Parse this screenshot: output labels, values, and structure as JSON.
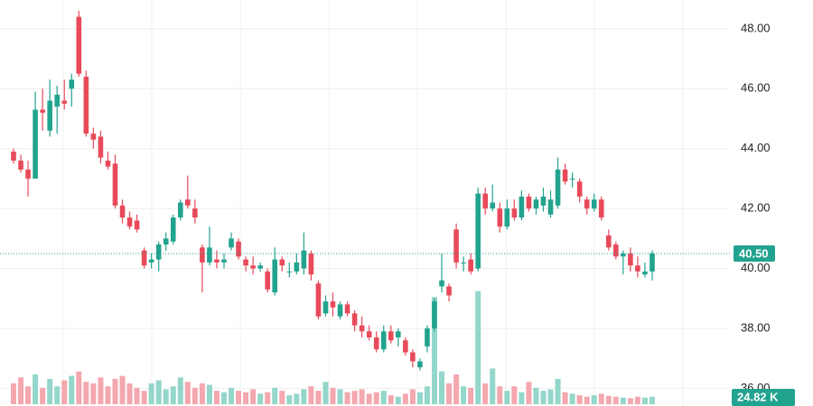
{
  "chart_data": {
    "type": "candlestick",
    "open": [
      43.9,
      43.6,
      43.3,
      43.0,
      45.3,
      44.6,
      45.4,
      45.6,
      46.0,
      48.4,
      46.4,
      44.5,
      44.4,
      43.6,
      43.5,
      42.1,
      41.7,
      41.6,
      40.6,
      40.2,
      40.3,
      40.8,
      40.9,
      41.7,
      42.3,
      42.0,
      40.7,
      40.2,
      40.3,
      40.2,
      40.7,
      40.9,
      40.3,
      40.1,
      40.0,
      39.9,
      39.2,
      40.3,
      39.9,
      39.9,
      40.0,
      40.5,
      39.5,
      38.5,
      38.9,
      38.4,
      38.8,
      38.5,
      38.1,
      37.9,
      37.7,
      37.3,
      37.9,
      37.7,
      37.6,
      37.2,
      36.7,
      37.4,
      38.0,
      39.4,
      39.4,
      41.3,
      40.2,
      40.3,
      40.0,
      42.5,
      42.0,
      42.0,
      41.4,
      42.0,
      41.7,
      42.4,
      42.0,
      42.1,
      41.8,
      42.1,
      43.3,
      43.0,
      42.9,
      42.3,
      42.0,
      42.3,
      41.1,
      40.8,
      40.4,
      40.5,
      40.1,
      39.8,
      39.9
    ],
    "high": [
      44.0,
      43.8,
      43.6,
      45.9,
      46.0,
      46.3,
      46.1,
      46.3,
      46.5,
      48.6,
      46.6,
      44.7,
      44.6,
      43.9,
      43.8,
      42.3,
      41.9,
      41.8,
      40.7,
      40.5,
      40.9,
      41.2,
      41.8,
      42.3,
      43.1,
      42.3,
      40.8,
      41.4,
      40.6,
      40.5,
      41.2,
      41.0,
      40.4,
      40.4,
      40.2,
      40.0,
      40.7,
      40.4,
      40.2,
      40.5,
      41.2,
      40.6,
      39.6,
      39.1,
      39.2,
      38.9,
      38.9,
      38.6,
      38.4,
      38.1,
      37.9,
      38.1,
      38.1,
      38.0,
      37.7,
      37.3,
      37.0,
      38.1,
      39.0,
      40.5,
      39.5,
      41.5,
      40.4,
      40.5,
      42.7,
      42.7,
      42.8,
      42.2,
      42.3,
      42.3,
      42.6,
      42.5,
      42.4,
      42.7,
      42.6,
      43.7,
      43.5,
      43.2,
      43.0,
      42.4,
      42.5,
      42.4,
      41.3,
      40.9,
      40.6,
      40.7,
      40.4,
      40.2,
      40.6
    ],
    "low": [
      43.5,
      43.2,
      42.4,
      43.0,
      44.6,
      44.4,
      44.5,
      45.3,
      45.4,
      46.4,
      44.4,
      44.0,
      43.5,
      43.3,
      42.0,
      41.5,
      41.3,
      41.2,
      40.0,
      40.0,
      39.9,
      40.6,
      40.8,
      41.6,
      42.0,
      41.5,
      39.2,
      40.1,
      40.0,
      40.0,
      40.6,
      40.3,
      39.9,
      39.8,
      39.9,
      39.2,
      39.1,
      39.9,
      39.7,
      39.8,
      39.8,
      39.6,
      38.3,
      38.4,
      38.4,
      38.3,
      38.4,
      37.9,
      37.7,
      37.6,
      37.2,
      37.2,
      37.5,
      37.4,
      37.1,
      36.7,
      36.6,
      37.2,
      37.9,
      39.2,
      38.9,
      40.0,
      39.9,
      39.8,
      39.9,
      41.8,
      41.9,
      41.2,
      41.3,
      41.6,
      41.6,
      41.9,
      41.8,
      41.9,
      41.7,
      42.0,
      42.8,
      42.7,
      42.2,
      41.8,
      41.9,
      41.6,
      40.6,
      40.3,
      39.8,
      39.9,
      39.7,
      39.7,
      39.6
    ],
    "close": [
      43.6,
      43.3,
      43.0,
      45.3,
      45.2,
      45.6,
      45.8,
      45.5,
      46.3,
      46.5,
      44.5,
      44.3,
      43.7,
      43.4,
      42.1,
      41.7,
      41.4,
      41.3,
      40.1,
      40.3,
      40.8,
      41.0,
      41.7,
      42.2,
      42.1,
      41.7,
      40.2,
      40.7,
      40.2,
      40.3,
      41.0,
      40.4,
      40.1,
      40.0,
      40.1,
      39.3,
      40.3,
      40.1,
      39.9,
      40.2,
      40.6,
      39.8,
      38.4,
      38.9,
      38.7,
      38.8,
      38.5,
      38.1,
      37.9,
      37.7,
      37.3,
      37.9,
      37.6,
      37.9,
      37.2,
      36.9,
      36.9,
      38.0,
      38.9,
      39.6,
      39.1,
      40.2,
      40.2,
      39.9,
      42.5,
      42.0,
      42.2,
      41.4,
      42.0,
      41.7,
      42.4,
      42.0,
      42.3,
      42.4,
      42.3,
      43.3,
      42.9,
      43.0,
      42.4,
      42.0,
      42.3,
      41.7,
      40.7,
      40.4,
      40.5,
      40.1,
      39.9,
      39.9,
      40.5
    ],
    "volume": [
      70,
      90,
      60,
      100,
      55,
      85,
      60,
      80,
      95,
      110,
      75,
      70,
      90,
      60,
      85,
      95,
      70,
      55,
      45,
      70,
      80,
      50,
      60,
      90,
      75,
      55,
      70,
      65,
      45,
      40,
      55,
      45,
      40,
      50,
      35,
      40,
      55,
      45,
      30,
      35,
      50,
      60,
      45,
      75,
      55,
      50,
      40,
      45,
      50,
      35,
      40,
      45,
      30,
      25,
      35,
      50,
      40,
      60,
      360,
      110,
      70,
      100,
      60,
      55,
      380,
      70,
      120,
      60,
      45,
      60,
      40,
      75,
      55,
      45,
      50,
      85,
      40,
      35,
      30,
      25,
      30,
      35,
      28,
      25,
      22,
      20,
      25,
      22,
      24.82
    ],
    "colors": {
      "up": "#22a38f",
      "down": "#e84a5a",
      "up_volume": "#93d6ca",
      "down_volume": "#f4a7ae"
    },
    "ylim": [
      35.41,
      48.96
    ],
    "yticks": [
      {
        "value": 36,
        "label": "36.00"
      },
      {
        "value": 38,
        "label": "38.00"
      },
      {
        "value": 40,
        "label": "40.00"
      },
      {
        "value": 42,
        "label": "42.00"
      },
      {
        "value": 44,
        "label": "44.00"
      },
      {
        "value": 46,
        "label": "46.00"
      },
      {
        "value": 48,
        "label": "48.00"
      }
    ],
    "grid": true,
    "last_price": {
      "value": 40.5,
      "label": "40.50"
    },
    "last_volume": {
      "value": 24.82,
      "label": "24.82 K"
    }
  }
}
